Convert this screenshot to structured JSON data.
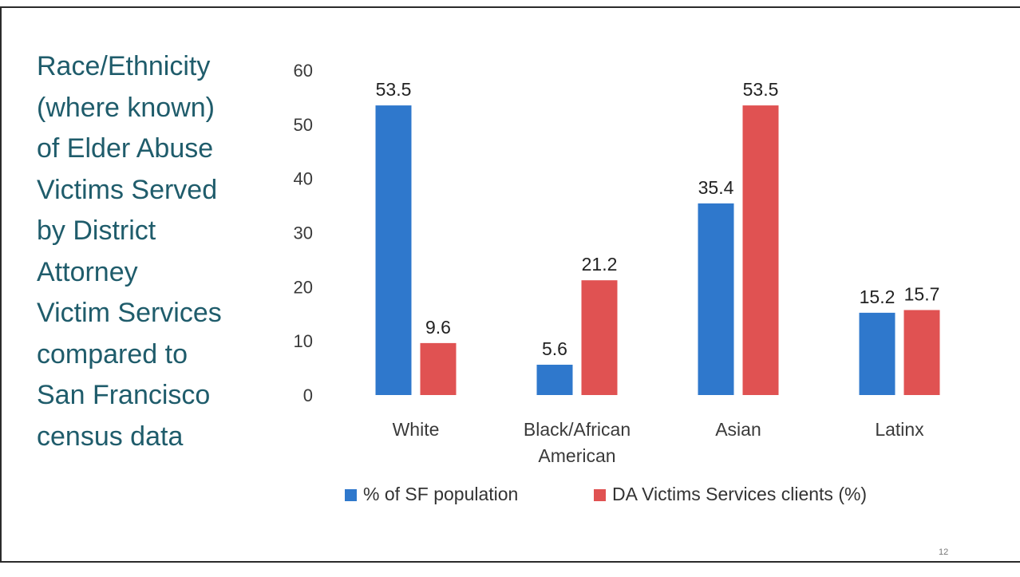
{
  "slide": {
    "title_lines": [
      "Race/Ethnicity",
      "(where known)",
      "of Elder Abuse",
      "Victims Served",
      "by District",
      "Attorney",
      "Victim Services",
      "compared to",
      "San Francisco",
      "census data"
    ],
    "page_number": "12"
  },
  "colors": {
    "title": "#1f5c6b",
    "series_blue": "#2f78cc",
    "series_red": "#e05252"
  },
  "chart_data": {
    "type": "bar",
    "categories": [
      "White",
      "Black/African American",
      "Asian",
      "Latinx"
    ],
    "category_lines": [
      [
        "White"
      ],
      [
        "Black/African",
        "American"
      ],
      [
        "Asian"
      ],
      [
        "Latinx"
      ]
    ],
    "series": [
      {
        "name": "% of SF population",
        "values": [
          53.5,
          5.6,
          35.4,
          15.2
        ],
        "labels": [
          "53.5",
          "5.6",
          "35.4",
          "15.2"
        ],
        "color": "#2f78cc"
      },
      {
        "name": "DA Victims Services clients (%)",
        "values": [
          9.6,
          21.2,
          53.5,
          15.7
        ],
        "labels": [
          "9.6",
          "21.2",
          "53.5",
          "15.7"
        ],
        "color": "#e05252"
      }
    ],
    "y_ticks": [
      "0",
      "10",
      "20",
      "30",
      "40",
      "50",
      "60"
    ],
    "ylim": [
      0,
      60
    ],
    "grid": false,
    "legend_position": "bottom",
    "title": "",
    "xlabel": "",
    "ylabel": ""
  }
}
